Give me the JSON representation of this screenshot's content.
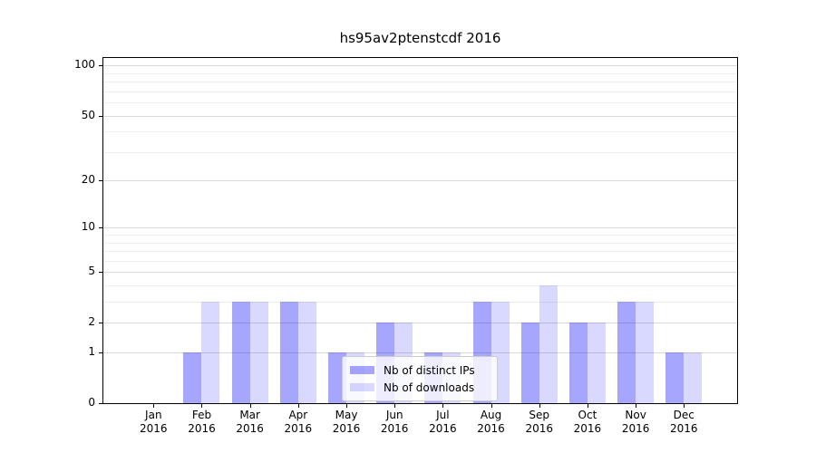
{
  "title": "hs95av2ptenstcdf 2016",
  "colors": {
    "background": "#ffffff",
    "bar_base": "#0000ff",
    "ips_fill": "#a6a6ff",
    "downloads_fill": "#d9d9ff",
    "ips_alpha": 0.35,
    "downloads_alpha": 0.15,
    "grid_major": "#d9d9d9",
    "grid_minor": "#eeeeee",
    "axis": "#000000",
    "legend_border": "#cccccc",
    "text": "#000000"
  },
  "legend": {
    "items": [
      {
        "label": "Nb of distinct IPs",
        "series": "ips"
      },
      {
        "label": "Nb of downloads",
        "series": "downloads"
      }
    ]
  },
  "y_axis": {
    "scale": "log1p",
    "tick_labels": [
      "0",
      "1",
      "2",
      "5",
      "10",
      "20",
      "50",
      "100"
    ],
    "tick_values": [
      0,
      1,
      2,
      5,
      10,
      20,
      50,
      100
    ],
    "minor_values": [
      3,
      4,
      6,
      7,
      8,
      9,
      30,
      40,
      60,
      70,
      80,
      90
    ],
    "max": 111
  },
  "x_axis": {
    "categories": [
      "Jan 2016",
      "Feb 2016",
      "Mar 2016",
      "Apr 2016",
      "May 2016",
      "Jun 2016",
      "Jul 2016",
      "Aug 2016",
      "Sep 2016",
      "Oct 2016",
      "Nov 2016",
      "Dec 2016"
    ]
  },
  "chart_data": {
    "type": "bar",
    "title": "hs95av2ptenstcdf 2016",
    "categories": [
      "Jan 2016",
      "Feb 2016",
      "Mar 2016",
      "Apr 2016",
      "May 2016",
      "Jun 2016",
      "Jul 2016",
      "Aug 2016",
      "Sep 2016",
      "Oct 2016",
      "Nov 2016",
      "Dec 2016"
    ],
    "series": [
      {
        "name": "Nb of distinct IPs",
        "values": [
          0,
          1,
          3,
          3,
          1,
          2,
          1,
          3,
          2,
          2,
          3,
          1
        ]
      },
      {
        "name": "Nb of downloads",
        "values": [
          0,
          3,
          3,
          3,
          1,
          2,
          1,
          3,
          4,
          2,
          3,
          1
        ]
      }
    ],
    "yscale": "log1p",
    "yticks": [
      0,
      1,
      2,
      5,
      10,
      20,
      50,
      100
    ],
    "ylim": [
      0,
      111
    ],
    "grid": true,
    "legend_position": "lower center inside"
  }
}
